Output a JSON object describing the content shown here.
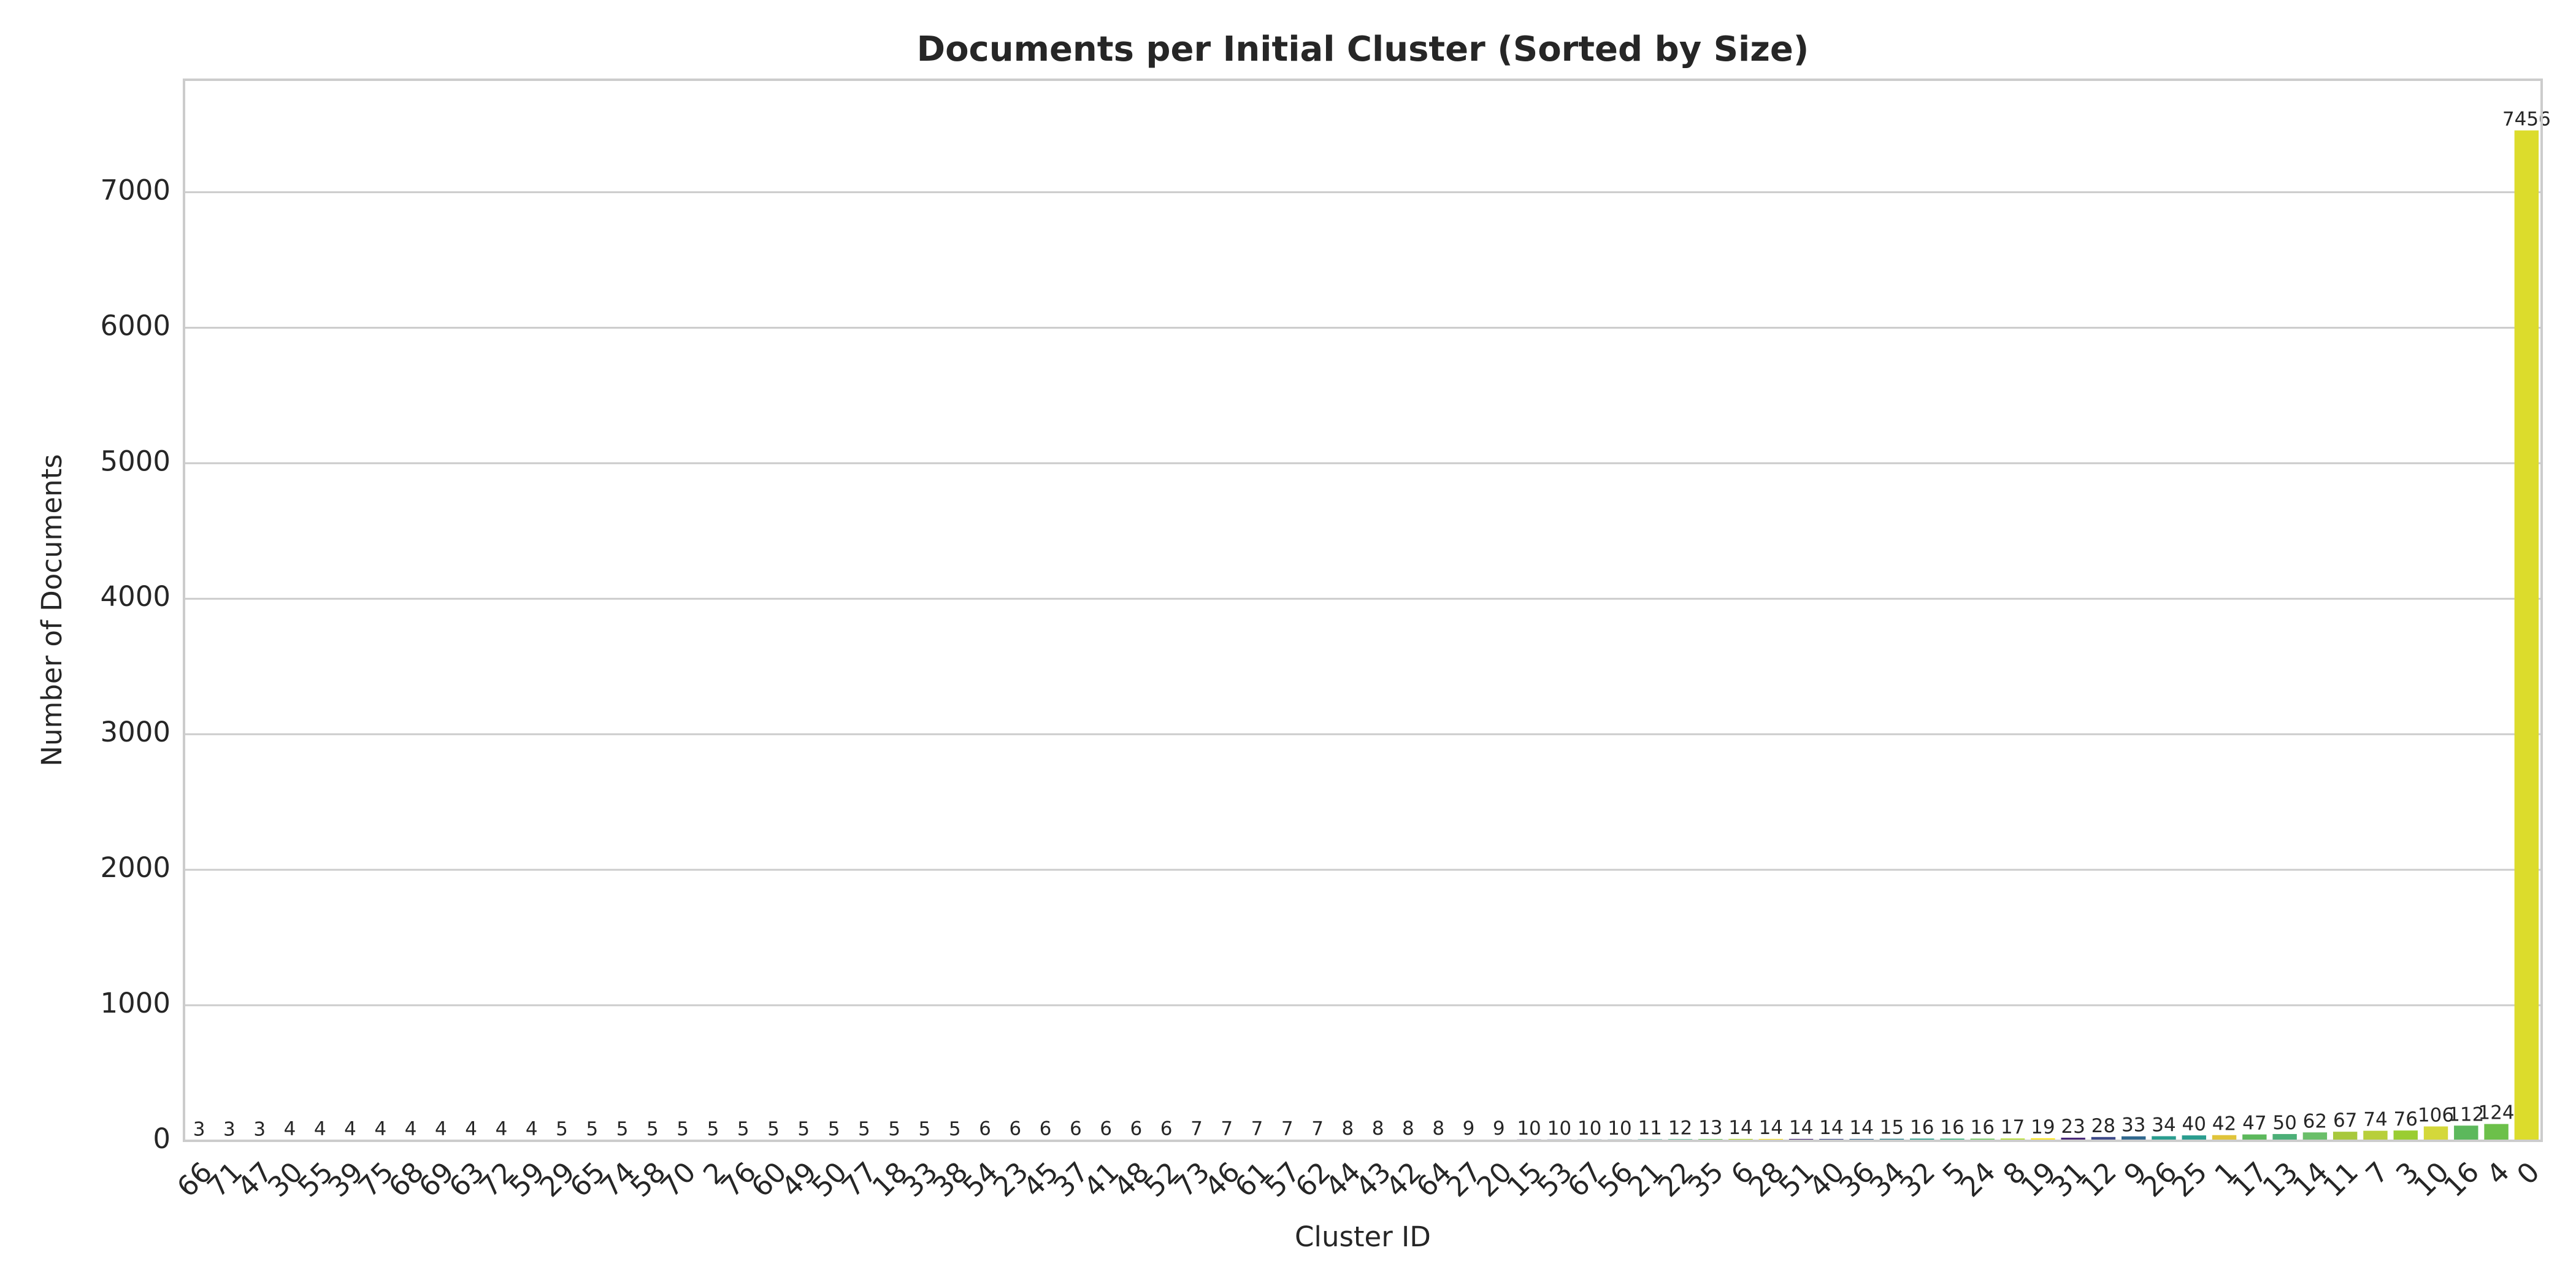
{
  "chart_data": {
    "type": "bar",
    "title": "Documents per Initial Cluster (Sorted by Size)",
    "x_label": "Cluster ID",
    "y_label": "Number of Documents",
    "categories": [
      "66",
      "71",
      "47",
      "30",
      "55",
      "39",
      "75",
      "68",
      "69",
      "63",
      "72",
      "59",
      "29",
      "65",
      "74",
      "58",
      "70",
      "2",
      "76",
      "60",
      "49",
      "50",
      "77",
      "18",
      "33",
      "38",
      "54",
      "23",
      "45",
      "37",
      "41",
      "48",
      "52",
      "73",
      "46",
      "61",
      "57",
      "62",
      "44",
      "43",
      "42",
      "64",
      "27",
      "20",
      "15",
      "53",
      "67",
      "56",
      "21",
      "22",
      "35",
      "6",
      "28",
      "51",
      "40",
      "36",
      "34",
      "32",
      "5",
      "24",
      "8",
      "19",
      "31",
      "12",
      "9",
      "26",
      "25",
      "1",
      "17",
      "13",
      "14",
      "11",
      "7",
      "3",
      "10",
      "16",
      "4",
      "0"
    ],
    "values": [
      3,
      3,
      3,
      4,
      4,
      4,
      4,
      4,
      4,
      4,
      4,
      4,
      5,
      5,
      5,
      5,
      5,
      5,
      5,
      5,
      5,
      5,
      5,
      5,
      5,
      5,
      6,
      6,
      6,
      6,
      6,
      6,
      6,
      7,
      7,
      7,
      7,
      7,
      8,
      8,
      8,
      8,
      9,
      9,
      10,
      10,
      10,
      10,
      11,
      12,
      13,
      14,
      14,
      14,
      14,
      14,
      15,
      16,
      16,
      16,
      17,
      19,
      23,
      28,
      33,
      34,
      40,
      42,
      47,
      50,
      62,
      67,
      74,
      76,
      106,
      112,
      124,
      7456
    ],
    "colors": [
      "#3e4a89",
      "#31688e",
      "#26828e",
      "#1f9e89",
      "#35b779",
      "#6ece58",
      "#b5de2b",
      "#fde725",
      "#482878",
      "#3e4a89",
      "#31688e",
      "#26828e",
      "#1f9e89",
      "#35b779",
      "#6ece58",
      "#b5de2b",
      "#fde725",
      "#482878",
      "#3e4a89",
      "#31688e",
      "#26828e",
      "#1f9e89",
      "#35b779",
      "#6ece58",
      "#b5de2b",
      "#fde725",
      "#482878",
      "#3e4a89",
      "#31688e",
      "#26828e",
      "#1f9e89",
      "#35b779",
      "#6ece58",
      "#b5de2b",
      "#fde725",
      "#482878",
      "#3e4a89",
      "#31688e",
      "#26828e",
      "#1f9e89",
      "#35b779",
      "#6ece58",
      "#b5de2b",
      "#fde725",
      "#482878",
      "#3e4a89",
      "#31688e",
      "#26828e",
      "#1f9e89",
      "#35b779",
      "#6ece58",
      "#b5de2b",
      "#fde725",
      "#482878",
      "#3e4a89",
      "#31688e",
      "#26828e",
      "#1f9e89",
      "#35b779",
      "#6ece58",
      "#b5de2b",
      "#fde725",
      "#482878",
      "#3e4a89",
      "#31688e",
      "#2a9d8f",
      "#2a9d8f",
      "#e0c43a",
      "#5cb85c",
      "#4caf78",
      "#6abf69",
      "#a8c83c",
      "#b8cf3a",
      "#9acd32",
      "#d4d83a",
      "#5cb85c",
      "#6cc04a",
      "#dcdc2c"
    ],
    "ylim": [
      0,
      7830
    ],
    "yticks": [
      0,
      1000,
      2000,
      3000,
      4000,
      5000,
      6000,
      7000
    ],
    "grid": true
  }
}
